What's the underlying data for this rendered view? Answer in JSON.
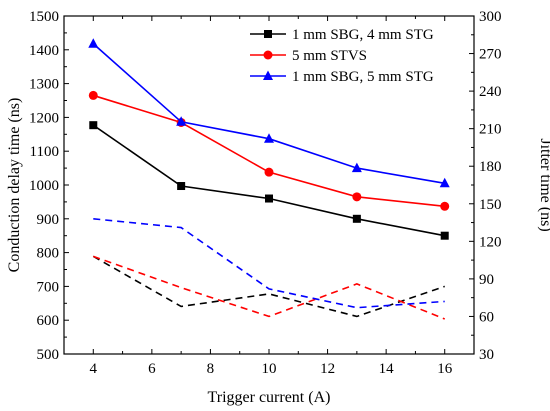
{
  "chart_data": {
    "type": "line",
    "x": [
      4,
      7,
      10,
      13,
      16
    ],
    "xlabel": "Trigger current (A)",
    "ylabel_left": "Conduction delay time (ns)",
    "ylabel_right": "Jitter time (ns)",
    "xlim": [
      3,
      17
    ],
    "ylim_left": [
      500,
      1500
    ],
    "ylim_right": [
      30,
      300
    ],
    "xticks": [
      "4",
      "6",
      "8",
      "10",
      "12",
      "14",
      "16"
    ],
    "xtick_values": [
      4,
      6,
      8,
      10,
      12,
      14,
      16
    ],
    "yticks_left": [
      "500",
      "600",
      "700",
      "800",
      "900",
      "1000",
      "1100",
      "1200",
      "1300",
      "1400",
      "1500"
    ],
    "yticks_left_values": [
      500,
      600,
      700,
      800,
      900,
      1000,
      1100,
      1200,
      1300,
      1400,
      1500
    ],
    "yticks_right": [
      "30",
      "60",
      "90",
      "120",
      "150",
      "180",
      "210",
      "240",
      "270",
      "300"
    ],
    "yticks_right_values": [
      30,
      60,
      90,
      120,
      150,
      180,
      210,
      240,
      270,
      300
    ],
    "grid": false,
    "legend_position": "top-right",
    "series": [
      {
        "name": "1 mm SBG, 4 mm STG",
        "color": "#000000",
        "marker": "square",
        "axis": "left",
        "style": "solid",
        "values": [
          1177,
          997,
          960,
          900,
          850
        ]
      },
      {
        "name": "5 mm STVS",
        "color": "#ff0000",
        "marker": "circle",
        "axis": "left",
        "style": "solid",
        "values": [
          1265,
          1185,
          1038,
          965,
          937
        ]
      },
      {
        "name": "1 mm SBG, 5 mm STG",
        "color": "#0000ff",
        "marker": "triangle",
        "axis": "left",
        "style": "solid",
        "values": [
          1418,
          1187,
          1137,
          1050,
          1005
        ]
      },
      {
        "color": "#000000",
        "marker": "square",
        "axis": "right",
        "style": "dashed",
        "values": [
          108,
          68,
          78,
          60,
          84
        ]
      },
      {
        "color": "#ff0000",
        "marker": "circle",
        "axis": "right",
        "style": "dashed",
        "values": [
          108,
          83,
          60,
          86,
          58
        ]
      },
      {
        "color": "#0000ff",
        "marker": "triangle",
        "axis": "right",
        "style": "dashed",
        "values": [
          138,
          131,
          82,
          67,
          72
        ]
      }
    ]
  }
}
